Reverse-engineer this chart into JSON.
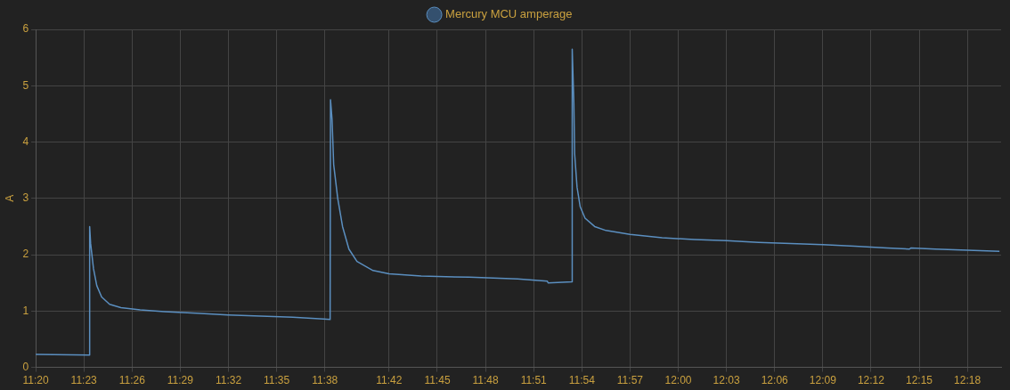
{
  "chart_data": {
    "type": "line",
    "ylabel": "A",
    "legend": "top",
    "grid": true,
    "marker": "none",
    "xlim": [
      11.3333,
      12.335
    ],
    "ylim": [
      0,
      6
    ],
    "yticks": [
      0,
      1,
      2,
      3,
      4,
      5,
      6
    ],
    "xticks": [
      {
        "value": 11.3333,
        "label": "11:20"
      },
      {
        "value": 11.3833,
        "label": "11:23"
      },
      {
        "value": 11.4333,
        "label": "11:26"
      },
      {
        "value": 11.4833,
        "label": "11:29"
      },
      {
        "value": 11.5333,
        "label": "11:32"
      },
      {
        "value": 11.5833,
        "label": "11:35"
      },
      {
        "value": 11.6333,
        "label": "11:38"
      },
      {
        "value": 11.7,
        "label": "11:42"
      },
      {
        "value": 11.75,
        "label": "11:45"
      },
      {
        "value": 11.8,
        "label": "11:48"
      },
      {
        "value": 11.85,
        "label": "11:51"
      },
      {
        "value": 11.9,
        "label": "11:54"
      },
      {
        "value": 11.95,
        "label": "11:57"
      },
      {
        "value": 12.0,
        "label": "12:00"
      },
      {
        "value": 12.05,
        "label": "12:03"
      },
      {
        "value": 12.1,
        "label": "12:06"
      },
      {
        "value": 12.15,
        "label": "12:09"
      },
      {
        "value": 12.2,
        "label": "12:12"
      },
      {
        "value": 12.25,
        "label": "12:15"
      },
      {
        "value": 12.3,
        "label": "12:18"
      }
    ],
    "series": [
      {
        "name": "Mercury MCU amperage",
        "color": "#5b8fc0",
        "x": [
          11.3333,
          11.3892,
          11.3893,
          11.3903,
          11.3933,
          11.3967,
          11.4017,
          11.41,
          11.4217,
          11.4417,
          11.4667,
          11.5,
          11.5333,
          11.5667,
          11.6,
          11.6317,
          11.6388,
          11.6392,
          11.6408,
          11.6425,
          11.6467,
          11.6517,
          11.6583,
          11.6667,
          11.6833,
          11.7,
          11.7333,
          11.7833,
          11.8333,
          11.8642,
          11.865,
          11.8897,
          11.89,
          11.8917,
          11.8925,
          11.895,
          11.8983,
          11.9033,
          11.9133,
          11.925,
          11.95,
          11.9833,
          12.0167,
          12.05,
          12.0833,
          12.1167,
          12.15,
          12.1833,
          12.2167,
          12.24,
          12.2417,
          12.2667,
          12.3,
          12.3333
        ],
        "values": [
          0.23,
          0.22,
          2.5,
          2.2,
          1.75,
          1.45,
          1.25,
          1.12,
          1.06,
          1.02,
          0.99,
          0.96,
          0.93,
          0.91,
          0.89,
          0.86,
          0.85,
          4.75,
          4.4,
          3.6,
          3.0,
          2.5,
          2.1,
          1.88,
          1.72,
          1.66,
          1.62,
          1.6,
          1.57,
          1.53,
          1.5,
          1.52,
          5.65,
          4.7,
          3.8,
          3.2,
          2.85,
          2.65,
          2.5,
          2.43,
          2.36,
          2.3,
          2.27,
          2.25,
          2.22,
          2.2,
          2.18,
          2.15,
          2.12,
          2.1,
          2.12,
          2.1,
          2.08,
          2.06
        ]
      }
    ]
  }
}
